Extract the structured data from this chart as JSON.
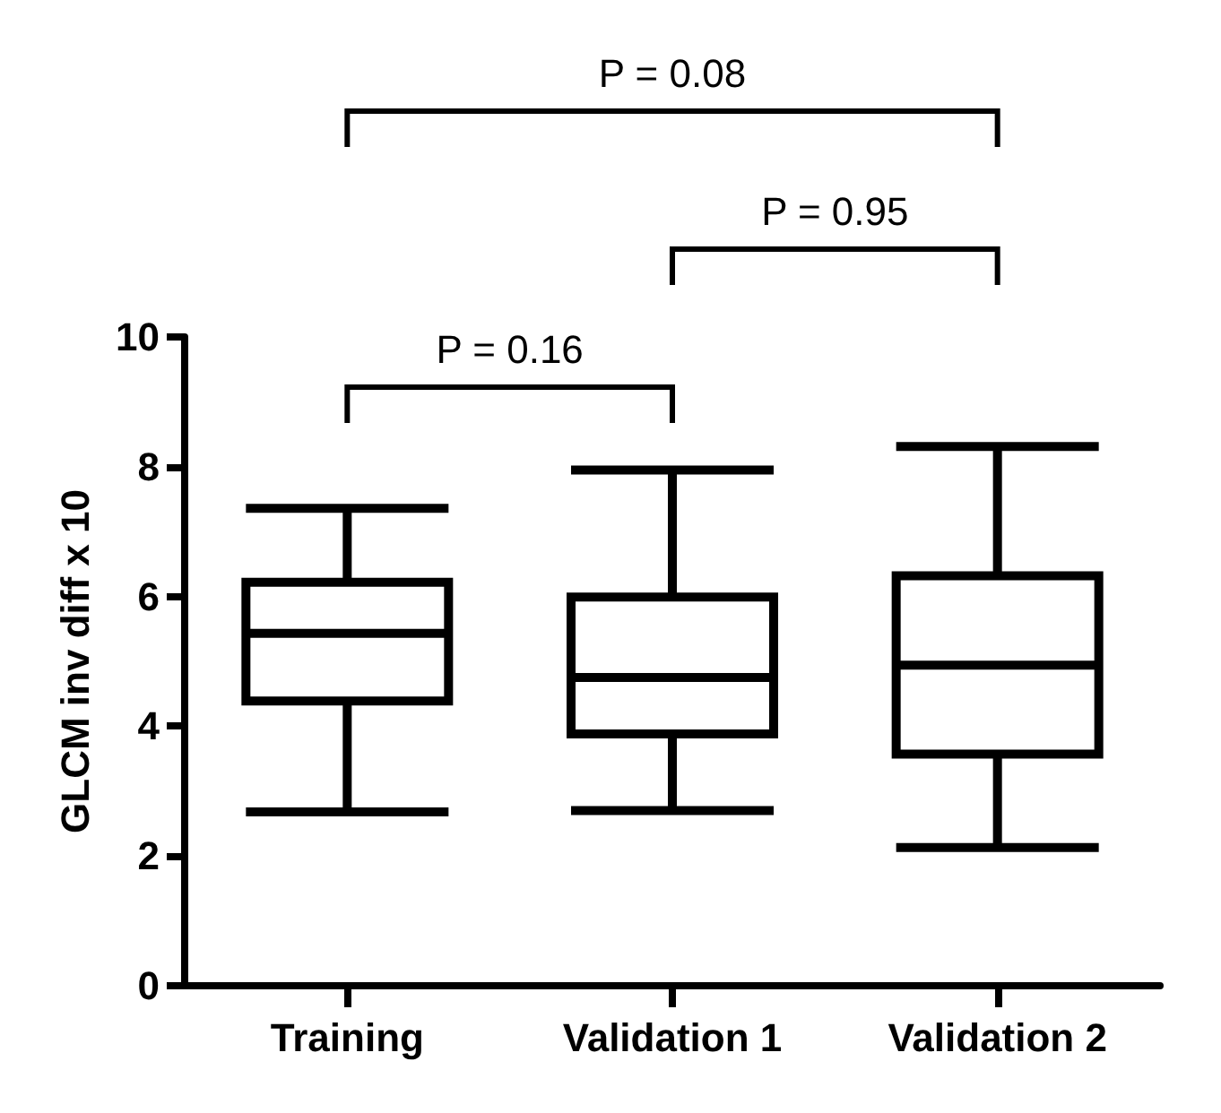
{
  "chart_data": {
    "type": "box",
    "ylabel": "GLCM inv diff x 10",
    "categories": [
      "Training",
      "Validation 1",
      "Validation 2"
    ],
    "boxes": [
      {
        "low": 2.68,
        "q1": 4.39,
        "median": 5.43,
        "q3": 6.22,
        "high": 7.36
      },
      {
        "low": 2.7,
        "q1": 3.88,
        "median": 4.75,
        "q3": 5.99,
        "high": 7.95
      },
      {
        "low": 2.13,
        "q1": 3.57,
        "median": 4.94,
        "q3": 6.32,
        "high": 8.31
      }
    ],
    "color": "#000000",
    "ylim": [
      0,
      10
    ],
    "yticks": [
      0,
      2,
      4,
      6,
      8,
      10
    ],
    "grid": false,
    "annotations": [
      "P = 0.16",
      "P = 0.95",
      "P = 0.08"
    ]
  }
}
